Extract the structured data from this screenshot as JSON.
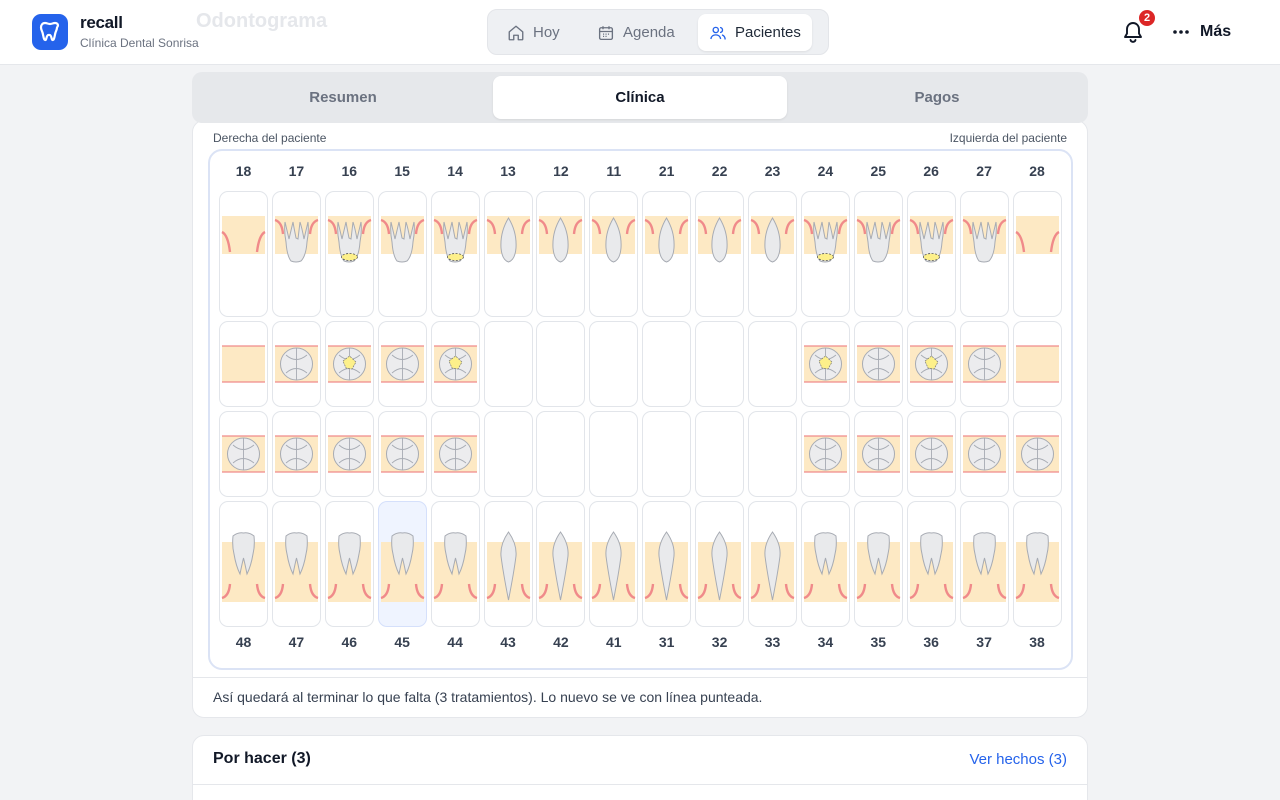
{
  "app": {
    "name": "recall",
    "clinic": "Clínica Dental Sonrisa",
    "ghost_title": "Odontograma"
  },
  "nav": {
    "items": [
      {
        "label": "Hoy",
        "icon": "home-icon",
        "active": false
      },
      {
        "label": "Agenda",
        "icon": "calendar-icon",
        "active": false
      },
      {
        "label": "Pacientes",
        "icon": "users-icon",
        "active": true
      }
    ]
  },
  "notifications": {
    "count": "2"
  },
  "more": {
    "label": "Más"
  },
  "tabs": [
    {
      "label": "Resumen"
    },
    {
      "label": "Clínica"
    },
    {
      "label": "Pagos"
    }
  ],
  "active_tab": 1,
  "odontogram": {
    "patient_right": "Derecha del paciente",
    "patient_left": "Izquierda del paciente",
    "upper_numbers": [
      "18",
      "17",
      "16",
      "15",
      "14",
      "13",
      "12",
      "11",
      "21",
      "22",
      "23",
      "24",
      "25",
      "26",
      "27",
      "28"
    ],
    "lower_numbers": [
      "48",
      "47",
      "46",
      "45",
      "44",
      "43",
      "42",
      "41",
      "31",
      "32",
      "33",
      "34",
      "35",
      "36",
      "37",
      "38"
    ],
    "selected_tooth": "45",
    "footnote": "Así quedará al terminar lo que falta (3 tratamientos). Lo nuevo se ve con línea punteada."
  },
  "todo": {
    "title": "Por hacer (3)",
    "done_link": "Ver hechos (3)"
  },
  "colors": {
    "accent": "#2563eb",
    "gum": "#f08a8a",
    "bone": "#fde9c4",
    "filling": "#fdf08a",
    "badge": "#dc2626"
  }
}
